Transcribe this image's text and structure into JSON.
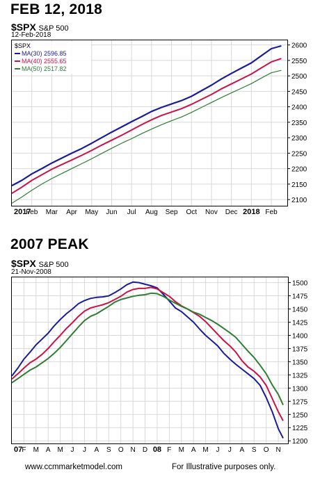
{
  "chart1": {
    "heading": "FEB 12, 2018",
    "symbol": "$SPX",
    "symbol_desc": "S&P 500",
    "date": "12-Feb-2018"
  },
  "chart2": {
    "heading": "2007 PEAK",
    "symbol": "$SPX",
    "symbol_desc": "S&P 500",
    "date": "21-Nov-2008"
  },
  "footer": {
    "left": "www.ccmmarketmodel.com",
    "right": "For Illustrative purposes only."
  },
  "chart_data": [
    {
      "type": "line",
      "title": "$SPX S&P 500",
      "legend_title": "$SPX",
      "legend_placement": "top-left",
      "grid": true,
      "ylim": [
        2080,
        2615
      ],
      "yticks": [
        2100,
        2150,
        2200,
        2250,
        2300,
        2350,
        2400,
        2450,
        2500,
        2550,
        2600
      ],
      "xticks": [
        "2017",
        "Feb",
        "Mar",
        "Apr",
        "May",
        "Jun",
        "Jul",
        "Aug",
        "Sep",
        "Oct",
        "Nov",
        "Dec",
        "2018",
        "Feb"
      ],
      "xlim": [
        0,
        13.8
      ],
      "x": [
        0,
        0.5,
        1,
        1.5,
        2,
        2.5,
        3,
        3.5,
        4,
        4.5,
        5,
        5.5,
        6,
        6.5,
        7,
        7.5,
        8,
        8.5,
        9,
        9.5,
        10,
        10.5,
        11,
        11.5,
        12,
        12.5,
        13,
        13.5
      ],
      "series": [
        {
          "name": "MA(30) 2596.85",
          "color": "#1a1a9c",
          "values": [
            2145,
            2162,
            2183,
            2200,
            2218,
            2234,
            2250,
            2265,
            2282,
            2300,
            2318,
            2335,
            2352,
            2368,
            2385,
            2398,
            2409,
            2420,
            2434,
            2452,
            2470,
            2490,
            2508,
            2525,
            2542,
            2565,
            2588,
            2597
          ]
        },
        {
          "name": "MA(40) 2555.65",
          "color": "#cc1144",
          "values": [
            2120,
            2140,
            2162,
            2180,
            2198,
            2213,
            2228,
            2243,
            2259,
            2276,
            2292,
            2308,
            2325,
            2342,
            2358,
            2372,
            2383,
            2394,
            2408,
            2424,
            2440,
            2458,
            2474,
            2490,
            2506,
            2526,
            2545,
            2556
          ]
        },
        {
          "name": "MA(50) 2517.82",
          "color": "#2e7d32",
          "values": [
            2088,
            2108,
            2130,
            2150,
            2168,
            2184,
            2200,
            2216,
            2232,
            2249,
            2266,
            2282,
            2297,
            2313,
            2328,
            2342,
            2355,
            2367,
            2382,
            2398,
            2414,
            2430,
            2445,
            2460,
            2475,
            2493,
            2510,
            2518
          ]
        }
      ]
    },
    {
      "type": "line",
      "title": "$SPX S&P 500",
      "grid": true,
      "ylim": [
        1195,
        1510
      ],
      "yticks": [
        1200,
        1225,
        1250,
        1275,
        1300,
        1325,
        1350,
        1375,
        1400,
        1425,
        1450,
        1475,
        1500
      ],
      "xticks": [
        "07",
        "F",
        "M",
        "A",
        "M",
        "J",
        "J",
        "A",
        "S",
        "O",
        "N",
        "D",
        "08",
        "F",
        "M",
        "A",
        "M",
        "J",
        "J",
        "A",
        "S",
        "O",
        "N"
      ],
      "xlim": [
        0,
        22.8
      ],
      "x": [
        0,
        0.5,
        1,
        1.5,
        2,
        2.5,
        3,
        3.5,
        4,
        4.5,
        5,
        5.5,
        6,
        6.5,
        7,
        7.5,
        8,
        8.5,
        9,
        9.5,
        10,
        10.5,
        11,
        11.5,
        12,
        12.5,
        13,
        13.5,
        14,
        14.5,
        15,
        15.5,
        16,
        16.5,
        17,
        17.5,
        18,
        18.5,
        19,
        19.5,
        20,
        20.5,
        21,
        21.5,
        22,
        22.4
      ],
      "series": [
        {
          "name": "",
          "color": "#1a1a9c",
          "values": [
            1323,
            1338,
            1355,
            1368,
            1382,
            1393,
            1404,
            1418,
            1430,
            1441,
            1450,
            1460,
            1466,
            1470,
            1472,
            1473,
            1475,
            1481,
            1488,
            1496,
            1501,
            1500,
            1497,
            1494,
            1490,
            1478,
            1465,
            1452,
            1445,
            1435,
            1425,
            1412,
            1400,
            1390,
            1380,
            1366,
            1355,
            1345,
            1336,
            1327,
            1318,
            1305,
            1282,
            1255,
            1223,
            1205
          ]
        },
        {
          "name": "",
          "color": "#cc1144",
          "values": [
            1317,
            1327,
            1338,
            1348,
            1355,
            1364,
            1375,
            1388,
            1400,
            1413,
            1424,
            1436,
            1446,
            1452,
            1455,
            1458,
            1462,
            1468,
            1474,
            1482,
            1487,
            1489,
            1489,
            1491,
            1488,
            1481,
            1474,
            1464,
            1456,
            1450,
            1443,
            1436,
            1426,
            1414,
            1402,
            1390,
            1380,
            1368,
            1352,
            1340,
            1332,
            1321,
            1305,
            1280,
            1255,
            1238
          ]
        },
        {
          "name": "",
          "color": "#2e7d32",
          "values": [
            1310,
            1318,
            1326,
            1334,
            1340,
            1348,
            1356,
            1366,
            1377,
            1390,
            1403,
            1416,
            1428,
            1436,
            1441,
            1448,
            1455,
            1463,
            1468,
            1471,
            1474,
            1476,
            1477,
            1480,
            1479,
            1474,
            1467,
            1461,
            1455,
            1450,
            1444,
            1440,
            1434,
            1428,
            1421,
            1413,
            1405,
            1396,
            1383,
            1370,
            1358,
            1343,
            1327,
            1306,
            1288,
            1268
          ]
        }
      ]
    }
  ]
}
